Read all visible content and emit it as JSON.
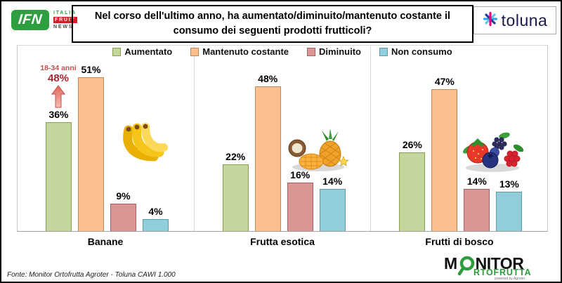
{
  "header": {
    "ifn": {
      "abbr": "IFN",
      "line1": "ITALIA",
      "line2": "FRUIT",
      "line3": "NEWS"
    },
    "title": "Nel corso dell'ultimo anno, ha aumentato/diminuito/mantenuto costante il consumo dei seguenti prodotti frutticoli?",
    "toluna": "toluna"
  },
  "chart_data": {
    "type": "bar",
    "title": "Nel corso dell'ultimo anno, ha aumentato/diminuito/mantenuto costante il consumo dei seguenti prodotti frutticoli?",
    "categories": [
      "Banane",
      "Frutta esotica",
      "Frutti di bosco"
    ],
    "series": [
      {
        "key": "aumentato",
        "name": "Aumentato",
        "values": [
          36,
          22,
          26
        ],
        "color": "#c3d69b",
        "border": "#86a04f"
      },
      {
        "key": "mantenuto-costante",
        "name": "Mantenuto costante",
        "values": [
          51,
          48,
          47
        ],
        "color": "#fac090",
        "border": "#c18950"
      },
      {
        "key": "diminuito",
        "name": "Diminuito",
        "values": [
          9,
          16,
          14
        ],
        "color": "#d99694",
        "border": "#a8615f"
      },
      {
        "key": "non-consumo",
        "name": "Non consumo",
        "values": [
          4,
          14,
          13
        ],
        "color": "#92cddc",
        "border": "#5f99ac"
      }
    ],
    "unit": "%",
    "ylim": [
      0,
      55
    ],
    "grid": false,
    "legend_position": "top",
    "annotation": {
      "target": "Banane - Aumentato",
      "line1": "18-34 anni",
      "line2": "48%",
      "color": "#c0504d"
    }
  },
  "icons": {
    "toluna_mark": "asterisk-star-icon",
    "banane": "bananas-icon",
    "frutta_esotica": "exotic-fruits-icon",
    "frutti_di_bosco": "berries-icon",
    "annotation_arrow": "up-arrow-icon",
    "monitor_mark": "magnifier-icon"
  },
  "colors": {
    "ifn_green": "#2f9e41",
    "ifn_red": "#d02128",
    "toluna_navy": "#1a1a4e",
    "monitor_green": "#2e9b3c",
    "annotation_red": "#c0504d"
  },
  "footer": {
    "source": "Fonte: Monitor Ortofrutta Agroter - Toluna CAWI 1.000"
  },
  "logos": {
    "monitor": {
      "part1": "M",
      "part2": "NITOR",
      "part3": "RTOFRUTTA",
      "powered": "powered by Agroter"
    }
  }
}
